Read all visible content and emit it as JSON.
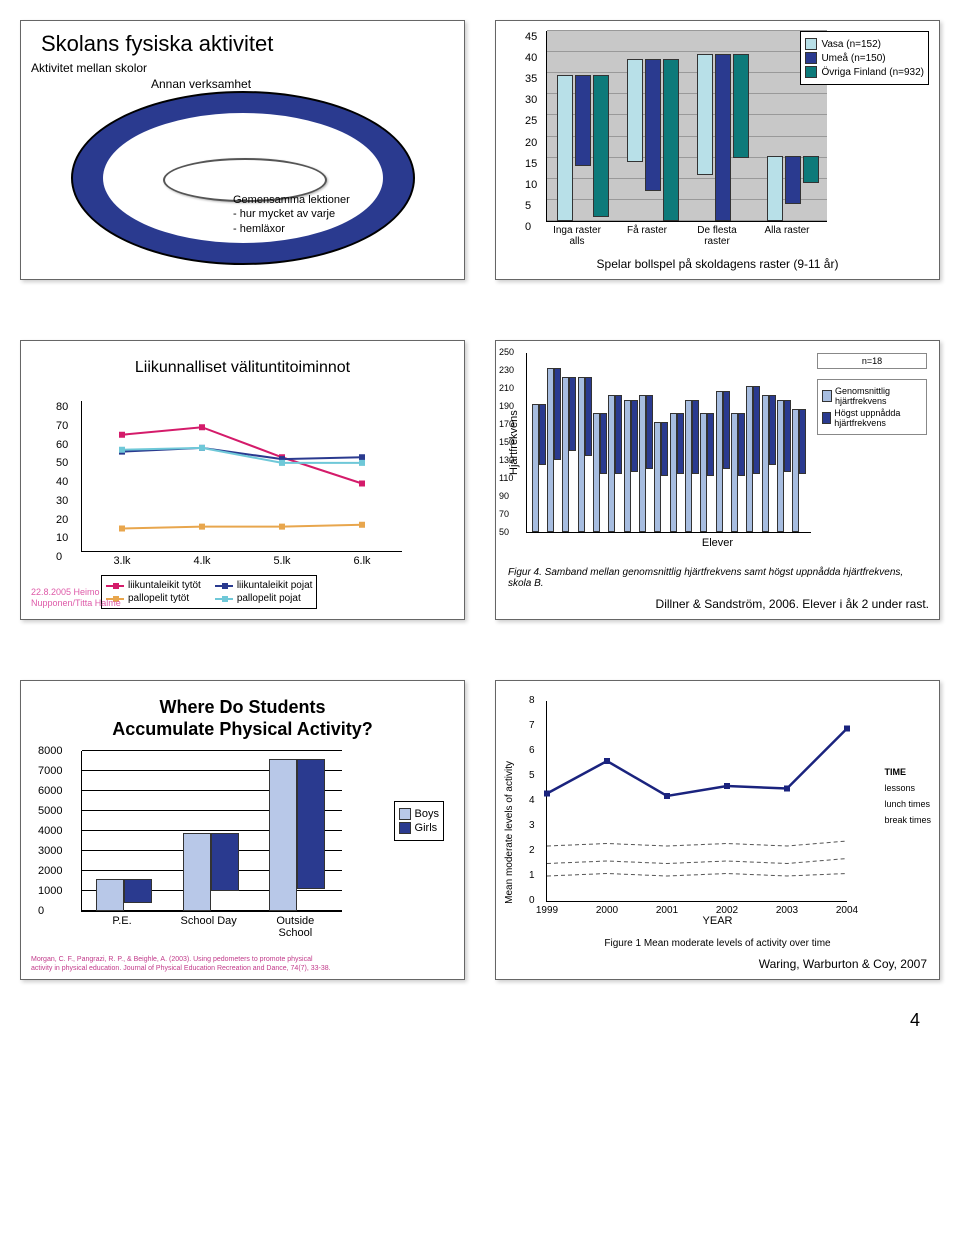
{
  "panel1": {
    "title": "Skolans fysiska aktivitet",
    "sub1": "Aktivitet mellan skolor",
    "sub2": "Annan verksamhet",
    "center1": "Gemensamma lektioner",
    "center2": "- hur mycket av varje",
    "center3": "- hemläxor"
  },
  "panel2": {
    "type": "bar",
    "ylim": [
      0,
      45
    ],
    "ytick_step": 5,
    "categories": [
      "Inga raster alls",
      "Få raster",
      "De flesta raster",
      "Alla raster"
    ],
    "series": [
      {
        "label": "Vasa (n=152)",
        "color": "#b8e0e8",
        "values": [
          34,
          24,
          28,
          15
        ]
      },
      {
        "label": "Umeå (n=150)",
        "color": "#2a3a8f",
        "values": [
          21,
          31,
          39,
          11
        ]
      },
      {
        "label": "Övriga Finland (n=932)",
        "color": "#0d7a7a",
        "values": [
          33,
          38,
          24,
          6
        ]
      }
    ],
    "caption": "Spelar bollspel på skoldagens raster (9-11 år)",
    "background": "#c8c8c8"
  },
  "panel3": {
    "type": "line",
    "title": "Liikunnalliset välituntitoiminnot",
    "ylim": [
      0,
      80
    ],
    "ytick_step": 10,
    "x": [
      "3.lk",
      "4.lk",
      "5.lk",
      "6.lk"
    ],
    "series": [
      {
        "label": "liikuntaleikit tytöt",
        "color": "#d41b6a",
        "values": [
          62,
          66,
          50,
          36
        ]
      },
      {
        "label": "liikuntaleikit pojat",
        "color": "#2a3a8f",
        "values": [
          53,
          55,
          49,
          50
        ]
      },
      {
        "label": "pallopelit tytöt",
        "color": "#e8a64d",
        "values": [
          12,
          13,
          13,
          14
        ]
      },
      {
        "label": "pallopelit pojat",
        "color": "#6fc8d8",
        "values": [
          54,
          55,
          47,
          47
        ]
      }
    ],
    "credit_l1": "22.8.2005 Heimo",
    "credit_l2": "Nupponen/Titta Halme"
  },
  "panel4": {
    "type": "bar",
    "ylabel": "Hjärtfrekvens",
    "xlabel": "Elever",
    "n_label": "n=18",
    "ylim": [
      50,
      250
    ],
    "ytick_step": 20,
    "series": [
      {
        "label": "Genomsnittlig hjärtfrekvens",
        "color": "#a7bde0",
        "values": [
          190,
          230,
          220,
          220,
          180,
          200,
          195,
          200,
          170,
          180,
          195,
          180,
          205,
          180,
          210,
          200,
          195,
          185
        ]
      },
      {
        "label": "Högst uppnådda hjärtfrekvens",
        "color": "#2a3a8f",
        "values": [
          115,
          150,
          130,
          135,
          115,
          135,
          128,
          130,
          108,
          115,
          130,
          118,
          135,
          118,
          145,
          125,
          128,
          120
        ]
      }
    ],
    "figtext": "Figur 4. Samband mellan genomsnittlig hjärtfrekvens samt högst uppnådda hjärtfrekvens, skola B.",
    "caption": "Dillner & Sandström, 2006. Elever i åk 2 under rast."
  },
  "panel5": {
    "type": "bar",
    "title_l1": "Where Do Students",
    "title_l2": "Accumulate Physical Activity?",
    "ylim": [
      0,
      8000
    ],
    "ytick_step": 1000,
    "categories": [
      "P.E.",
      "School Day",
      "Outside School"
    ],
    "series": [
      {
        "label": "Boys",
        "color": "#b8c8e8",
        "values": [
          1500,
          3800,
          7500
        ]
      },
      {
        "label": "Girls",
        "color": "#2a3a8f",
        "values": [
          1100,
          2800,
          6400
        ]
      }
    ],
    "credit": "Morgan, C. F., Pangrazi, R. P., & Beighle, A. (2003). Using pedometers to promote physical activity in physical education. Journal of Physical Education Recreation and Dance, 74(7), 33-38."
  },
  "panel6": {
    "type": "line",
    "ylabel": "Mean moderate levels of activity",
    "ylim": [
      0,
      8
    ],
    "ytick_step": 1,
    "x": [
      "1999",
      "2000",
      "2001",
      "2002",
      "2003",
      "2004"
    ],
    "series_main": {
      "label": "TIME",
      "color": "#1a237e",
      "values": [
        4.3,
        5.6,
        4.2,
        4.6,
        4.5,
        6.9
      ]
    },
    "series_dashed": [
      {
        "label": "lessons",
        "values": [
          2.2,
          2.3,
          2.2,
          2.3,
          2.2,
          2.4
        ]
      },
      {
        "label": "lunch times",
        "values": [
          1.5,
          1.6,
          1.5,
          1.6,
          1.5,
          1.7
        ]
      },
      {
        "label": "break times",
        "values": [
          1.0,
          1.1,
          1.0,
          1.1,
          1.0,
          1.1
        ]
      }
    ],
    "xlabel": "YEAR",
    "fig_caption": "Figure 1   Mean moderate levels of activity over time",
    "credit": "Waring, Warburton & Coy, 2007"
  },
  "page_number": "4"
}
